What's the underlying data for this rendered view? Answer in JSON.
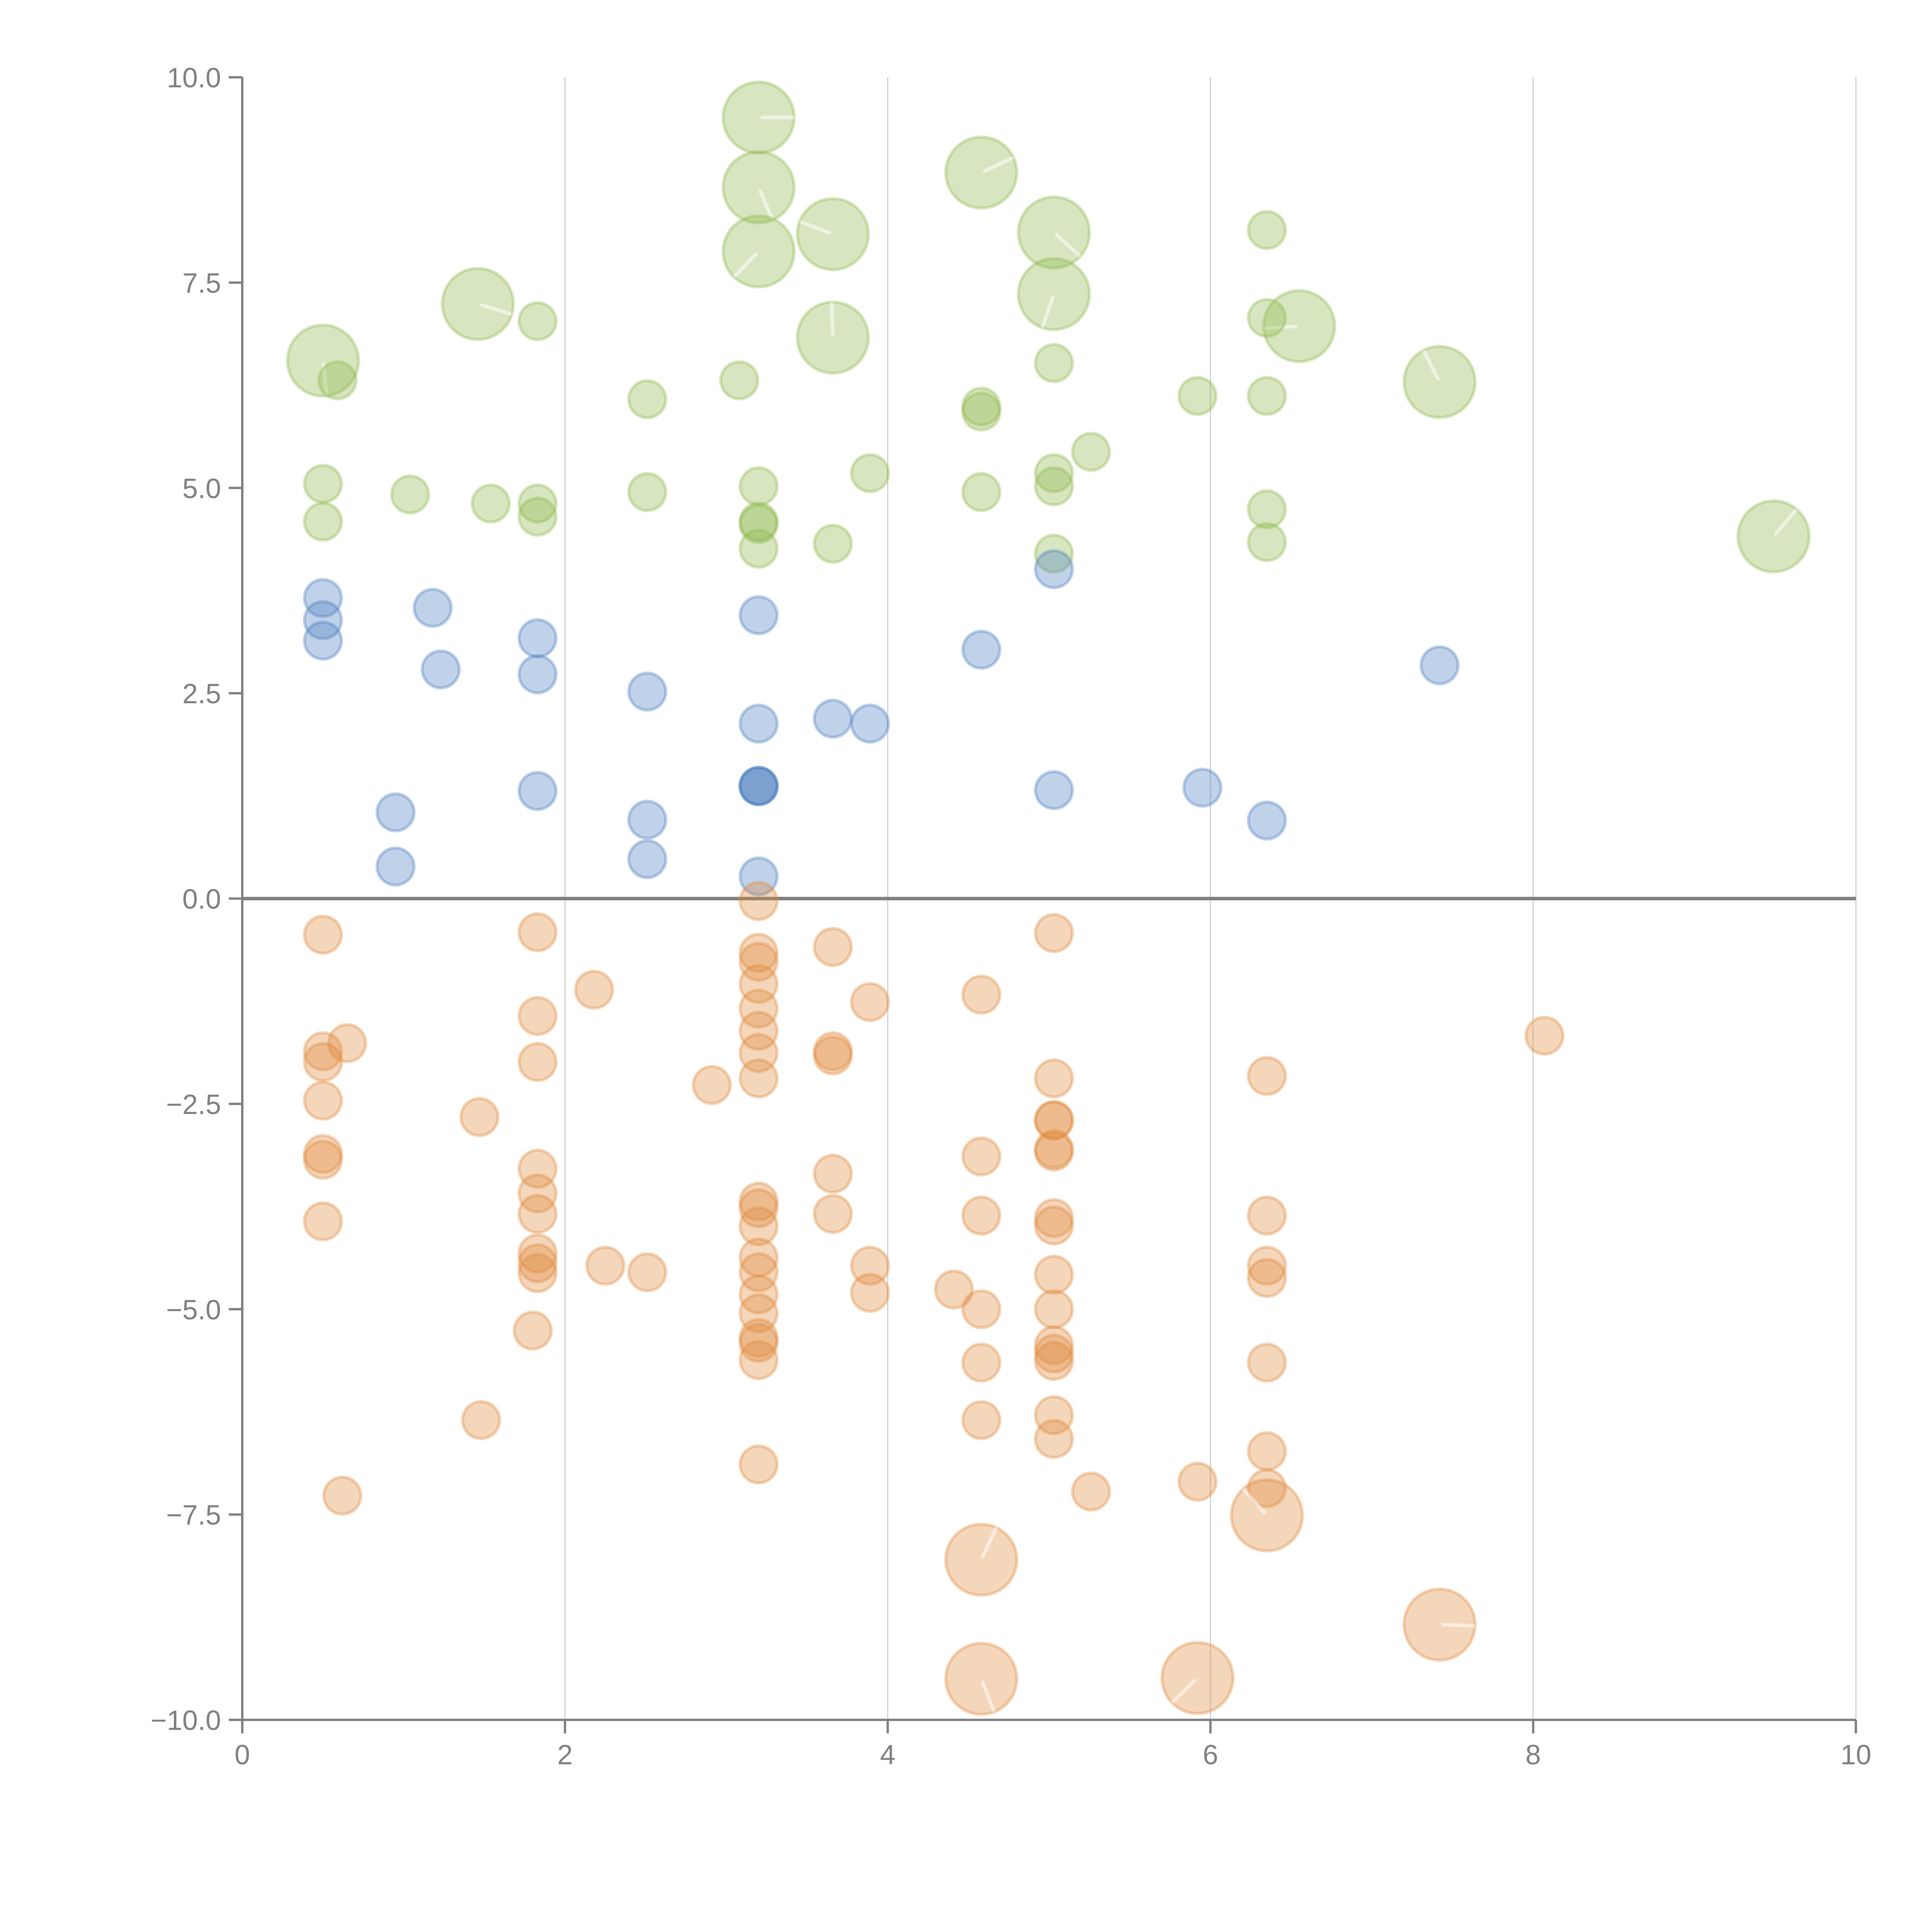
{
  "chart_data": {
    "type": "scatter",
    "title": "",
    "xlabel": "",
    "ylabel": "",
    "xlim": [
      0,
      10
    ],
    "ylim": [
      -10,
      10
    ],
    "x_ticks": [
      0,
      2,
      4,
      6,
      8,
      10
    ],
    "x_tick_labels": [
      "0",
      "2",
      "4",
      "6",
      "8",
      "10"
    ],
    "y_ticks": [
      10,
      7.5,
      5,
      2.5,
      0,
      -2.5,
      -5,
      -7.5,
      -10
    ],
    "y_tick_labels": [
      "10.0",
      "7.5",
      "5.0",
      "2.5",
      "0.0",
      "−2.5",
      "−5.0",
      "−7.5",
      "−10.0"
    ],
    "grid": "vertical",
    "zero_line": true,
    "legend": "none",
    "marker_size_levels": {
      "small": 1,
      "large": 2
    },
    "series": [
      {
        "name": "green",
        "color": "#8cb84a",
        "points": [
          [
            3.2,
            9.51,
            2
          ],
          [
            3.2,
            8.66,
            2
          ],
          [
            3.2,
            7.88,
            2
          ],
          [
            3.66,
            8.09,
            2
          ],
          [
            3.66,
            6.83,
            2
          ],
          [
            4.58,
            8.84,
            2
          ],
          [
            5.03,
            8.11,
            2
          ],
          [
            5.03,
            7.36,
            2
          ],
          [
            6.55,
            6.97,
            2
          ],
          [
            7.42,
            6.29,
            2
          ],
          [
            9.49,
            4.41,
            2
          ],
          [
            1.46,
            7.24,
            2
          ],
          [
            0.5,
            6.55,
            2
          ],
          [
            0.59,
            6.31,
            1
          ],
          [
            1.83,
            7.03,
            1
          ],
          [
            6.35,
            8.14,
            1
          ],
          [
            6.35,
            7.07,
            1
          ],
          [
            6.35,
            6.12,
            1
          ],
          [
            5.92,
            6.12,
            1
          ],
          [
            5.03,
            6.52,
            1
          ],
          [
            4.58,
            5.99,
            1
          ],
          [
            4.58,
            5.93,
            1
          ],
          [
            3.08,
            6.31,
            1
          ],
          [
            2.51,
            6.08,
            1
          ],
          [
            0.5,
            5.05,
            1
          ],
          [
            0.5,
            4.59,
            1
          ],
          [
            1.04,
            4.92,
            1
          ],
          [
            1.54,
            4.81,
            1
          ],
          [
            1.83,
            4.81,
            1
          ],
          [
            1.83,
            4.65,
            1
          ],
          [
            2.51,
            4.95,
            1
          ],
          [
            3.2,
            5.02,
            1
          ],
          [
            3.2,
            4.59,
            1
          ],
          [
            3.2,
            4.56,
            1
          ],
          [
            3.2,
            4.26,
            1
          ],
          [
            3.66,
            4.32,
            1
          ],
          [
            3.89,
            5.18,
            1
          ],
          [
            4.58,
            4.95,
            1
          ],
          [
            5.03,
            5.18,
            1
          ],
          [
            5.03,
            5.02,
            1
          ],
          [
            5.26,
            5.44,
            1
          ],
          [
            5.03,
            4.2,
            1
          ],
          [
            6.35,
            4.74,
            1
          ],
          [
            6.35,
            4.34,
            1
          ]
        ]
      },
      {
        "name": "blue",
        "color": "#4a7fc1",
        "points": [
          [
            0.5,
            3.66,
            1
          ],
          [
            0.5,
            3.39,
            1
          ],
          [
            0.5,
            3.14,
            1
          ],
          [
            1.18,
            3.54,
            1
          ],
          [
            1.23,
            2.79,
            1
          ],
          [
            1.83,
            3.17,
            1
          ],
          [
            1.83,
            2.73,
            1
          ],
          [
            2.51,
            2.52,
            1
          ],
          [
            3.2,
            3.45,
            1
          ],
          [
            3.2,
            2.13,
            1
          ],
          [
            3.66,
            2.19,
            1
          ],
          [
            3.89,
            2.13,
            1
          ],
          [
            4.58,
            3.03,
            1
          ],
          [
            5.03,
            4.01,
            1
          ],
          [
            7.42,
            2.84,
            1
          ],
          [
            0.95,
            1.05,
            1
          ],
          [
            0.95,
            0.39,
            1
          ],
          [
            1.83,
            1.31,
            1
          ],
          [
            2.51,
            0.96,
            1
          ],
          [
            2.51,
            0.48,
            1
          ],
          [
            3.2,
            1.37,
            1
          ],
          [
            3.2,
            1.37,
            1
          ],
          [
            3.2,
            1.37,
            1
          ],
          [
            3.2,
            0.27,
            1
          ],
          [
            5.03,
            1.32,
            1
          ],
          [
            5.95,
            1.35,
            1
          ],
          [
            6.35,
            0.95,
            1
          ]
        ]
      },
      {
        "name": "orange",
        "color": "#e08a3c",
        "points": [
          [
            0.5,
            -0.44,
            1
          ],
          [
            1.83,
            -0.41,
            1
          ],
          [
            3.2,
            -0.03,
            1
          ],
          [
            3.66,
            -0.59,
            1
          ],
          [
            5.03,
            -0.42,
            1
          ],
          [
            2.18,
            -1.11,
            1
          ],
          [
            3.2,
            -0.66,
            1
          ],
          [
            3.2,
            -0.77,
            1
          ],
          [
            3.2,
            -1.04,
            1
          ],
          [
            3.2,
            -1.34,
            1
          ],
          [
            3.2,
            -1.61,
            1
          ],
          [
            3.2,
            -1.88,
            1
          ],
          [
            3.2,
            -2.19,
            1
          ],
          [
            3.89,
            -1.26,
            1
          ],
          [
            4.58,
            -1.17,
            1
          ],
          [
            0.65,
            -1.76,
            1
          ],
          [
            0.5,
            -1.86,
            1
          ],
          [
            0.5,
            -1.99,
            1
          ],
          [
            1.83,
            -1.43,
            1
          ],
          [
            1.83,
            -1.99,
            1
          ],
          [
            3.66,
            -1.86,
            1
          ],
          [
            3.66,
            -1.91,
            1
          ],
          [
            2.91,
            -2.27,
            1
          ],
          [
            5.03,
            -2.19,
            1
          ],
          [
            6.35,
            -2.16,
            1
          ],
          [
            8.07,
            -1.67,
            1
          ],
          [
            0.5,
            -2.46,
            1
          ],
          [
            1.47,
            -2.66,
            1
          ],
          [
            5.03,
            -2.7,
            1
          ],
          [
            5.03,
            -2.7,
            1
          ],
          [
            5.03,
            -3.05,
            1
          ],
          [
            5.03,
            -3.08,
            1
          ],
          [
            0.5,
            -3.11,
            1
          ],
          [
            0.5,
            -3.18,
            1
          ],
          [
            4.58,
            -3.14,
            1
          ],
          [
            1.83,
            -3.29,
            1
          ],
          [
            1.83,
            -3.59,
            1
          ],
          [
            1.83,
            -3.84,
            1
          ],
          [
            3.66,
            -3.35,
            1
          ],
          [
            3.66,
            -3.84,
            1
          ],
          [
            3.2,
            -3.69,
            1
          ],
          [
            3.2,
            -3.77,
            1
          ],
          [
            3.2,
            -3.99,
            1
          ],
          [
            3.2,
            -4.37,
            1
          ],
          [
            3.2,
            -4.55,
            1
          ],
          [
            3.2,
            -4.82,
            1
          ],
          [
            3.2,
            -5.05,
            1
          ],
          [
            3.2,
            -5.35,
            1
          ],
          [
            3.2,
            -5.41,
            1
          ],
          [
            3.2,
            -5.62,
            1
          ],
          [
            3.2,
            -6.89,
            1
          ],
          [
            0.5,
            -3.93,
            1
          ],
          [
            4.58,
            -3.86,
            1
          ],
          [
            5.03,
            -3.89,
            1
          ],
          [
            5.03,
            -3.98,
            1
          ],
          [
            6.35,
            -3.86,
            1
          ],
          [
            1.83,
            -4.32,
            1
          ],
          [
            1.83,
            -4.44,
            1
          ],
          [
            1.83,
            -4.56,
            1
          ],
          [
            2.25,
            -4.47,
            1
          ],
          [
            2.51,
            -4.55,
            1
          ],
          [
            3.89,
            -4.47,
            1
          ],
          [
            3.89,
            -4.8,
            1
          ],
          [
            4.41,
            -4.76,
            1
          ],
          [
            5.03,
            -4.58,
            1
          ],
          [
            5.03,
            -5.0,
            1
          ],
          [
            4.58,
            -5.0,
            1
          ],
          [
            1.8,
            -5.26,
            1
          ],
          [
            5.03,
            -5.44,
            1
          ],
          [
            5.03,
            -5.54,
            1
          ],
          [
            5.03,
            -5.63,
            1
          ],
          [
            4.58,
            -5.65,
            1
          ],
          [
            6.35,
            -4.47,
            1
          ],
          [
            6.35,
            -4.62,
            1
          ],
          [
            6.35,
            -5.65,
            1
          ],
          [
            1.48,
            -6.35,
            1
          ],
          [
            4.58,
            -6.35,
            1
          ],
          [
            5.03,
            -6.29,
            1
          ],
          [
            5.03,
            -6.58,
            1
          ],
          [
            6.35,
            -6.73,
            1
          ],
          [
            6.35,
            -7.18,
            1
          ],
          [
            5.92,
            -7.1,
            1
          ],
          [
            5.26,
            -7.22,
            1
          ],
          [
            0.62,
            -7.27,
            1
          ],
          [
            6.35,
            -7.51,
            2
          ],
          [
            4.58,
            -8.05,
            2
          ],
          [
            7.42,
            -8.84,
            2
          ],
          [
            4.58,
            -9.5,
            2
          ],
          [
            5.92,
            -9.49,
            2
          ]
        ]
      }
    ]
  }
}
